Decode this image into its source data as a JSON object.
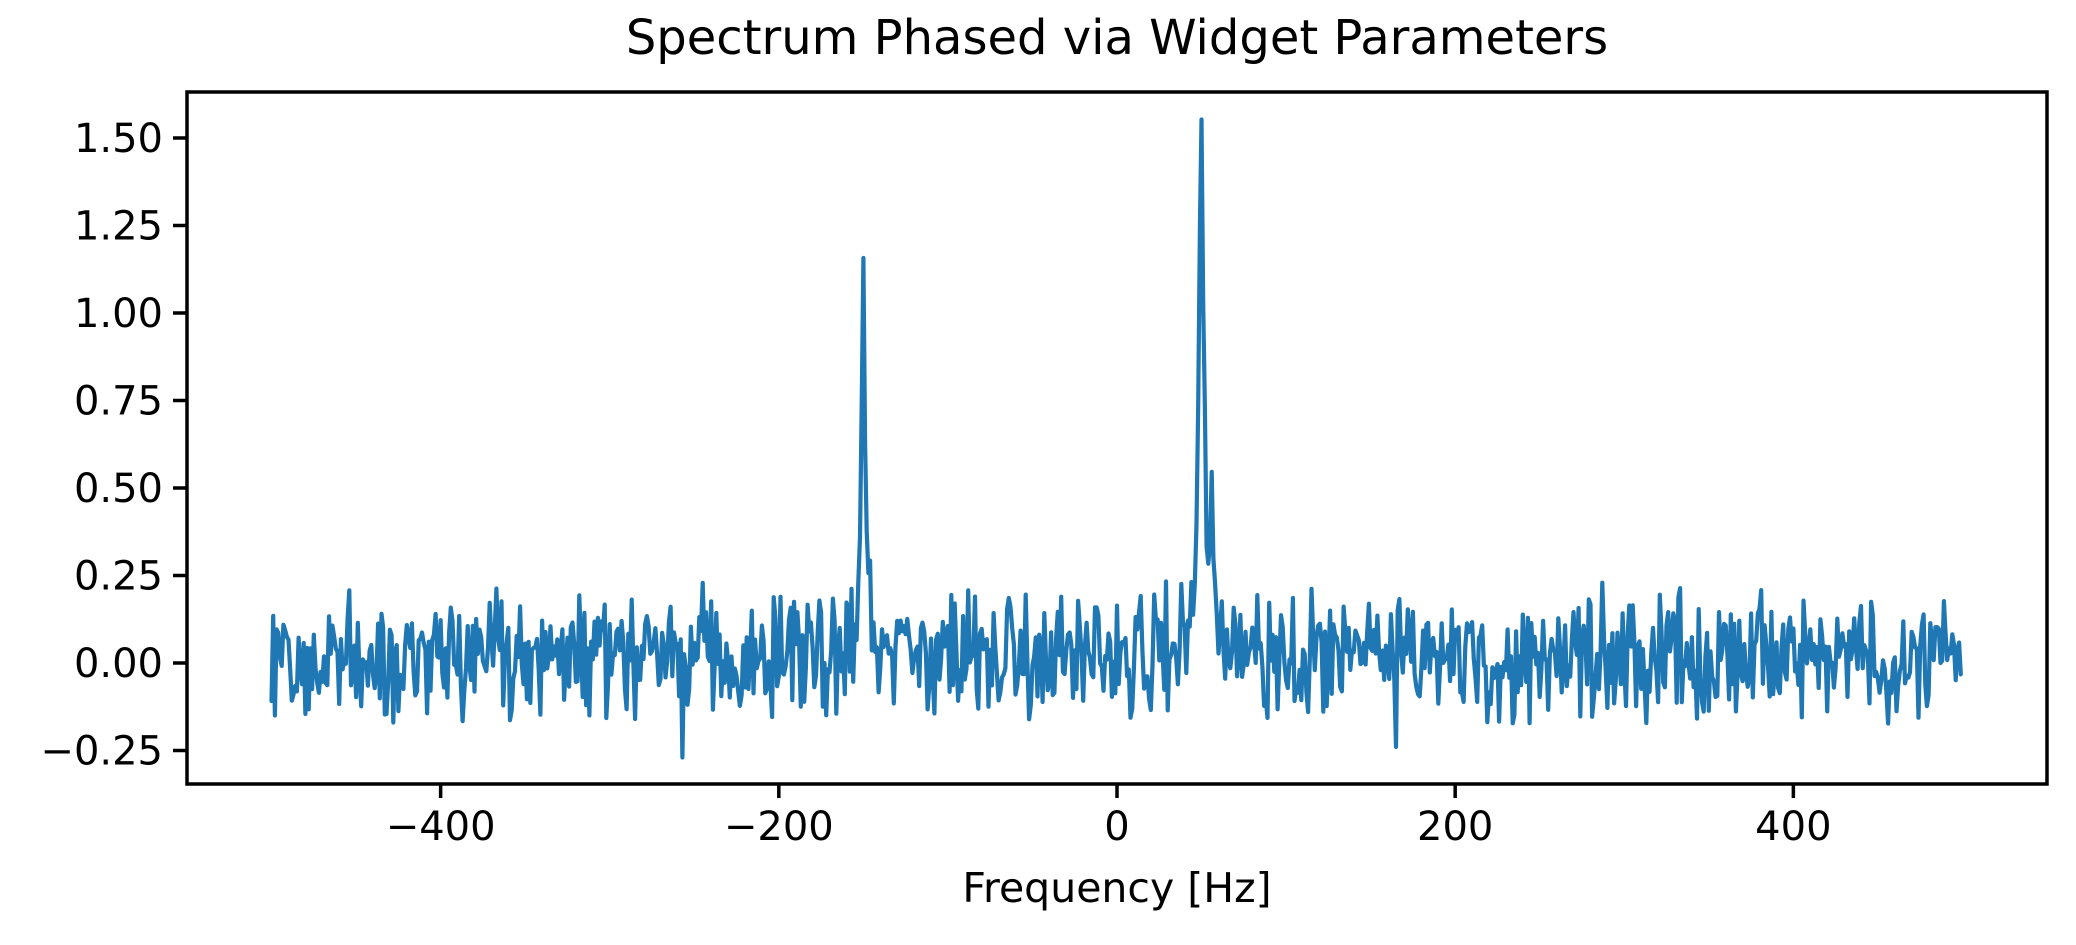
{
  "figure": {
    "background_color": "#ffffff"
  },
  "chart_data": {
    "type": "line",
    "title": "Spectrum Phased via Widget Parameters",
    "xlabel": "Frequency [Hz]",
    "ylabel": "",
    "xlim": [
      -550,
      550
    ],
    "ylim": [
      -0.3457,
      1.6314
    ],
    "xticks": [
      -400,
      -200,
      0,
      200,
      400
    ],
    "yticks": [
      -0.25,
      0.0,
      0.25,
      0.5,
      0.75,
      1.0,
      1.25,
      1.5
    ],
    "grid": false,
    "legend": "none",
    "line_color": "#1f77b4",
    "axis_color": "#000000",
    "frequency_axis": {
      "start_hz": -500,
      "step_hz": 1,
      "n_points": 1000
    },
    "peaks": [
      {
        "frequency_hz": -150,
        "apex_value": 1.05,
        "amplitude": 1.01,
        "hwhm_hz": 1.6
      },
      {
        "frequency_hz": 50,
        "apex_value": 1.54,
        "amplitude": 1.47,
        "hwhm_hz": 1.6
      },
      {
        "frequency_hz": 56,
        "apex_value": 0.47,
        "amplitude": 0.35,
        "hwhm_hz": 2.2
      }
    ],
    "noise": {
      "mean": 0.025,
      "half_range": 0.21,
      "seed": 12
    },
    "noise_spikes": [
      {
        "frequency_hz": -257,
        "value": -0.27
      },
      {
        "frequency_hz": 165,
        "value": -0.24
      }
    ]
  }
}
